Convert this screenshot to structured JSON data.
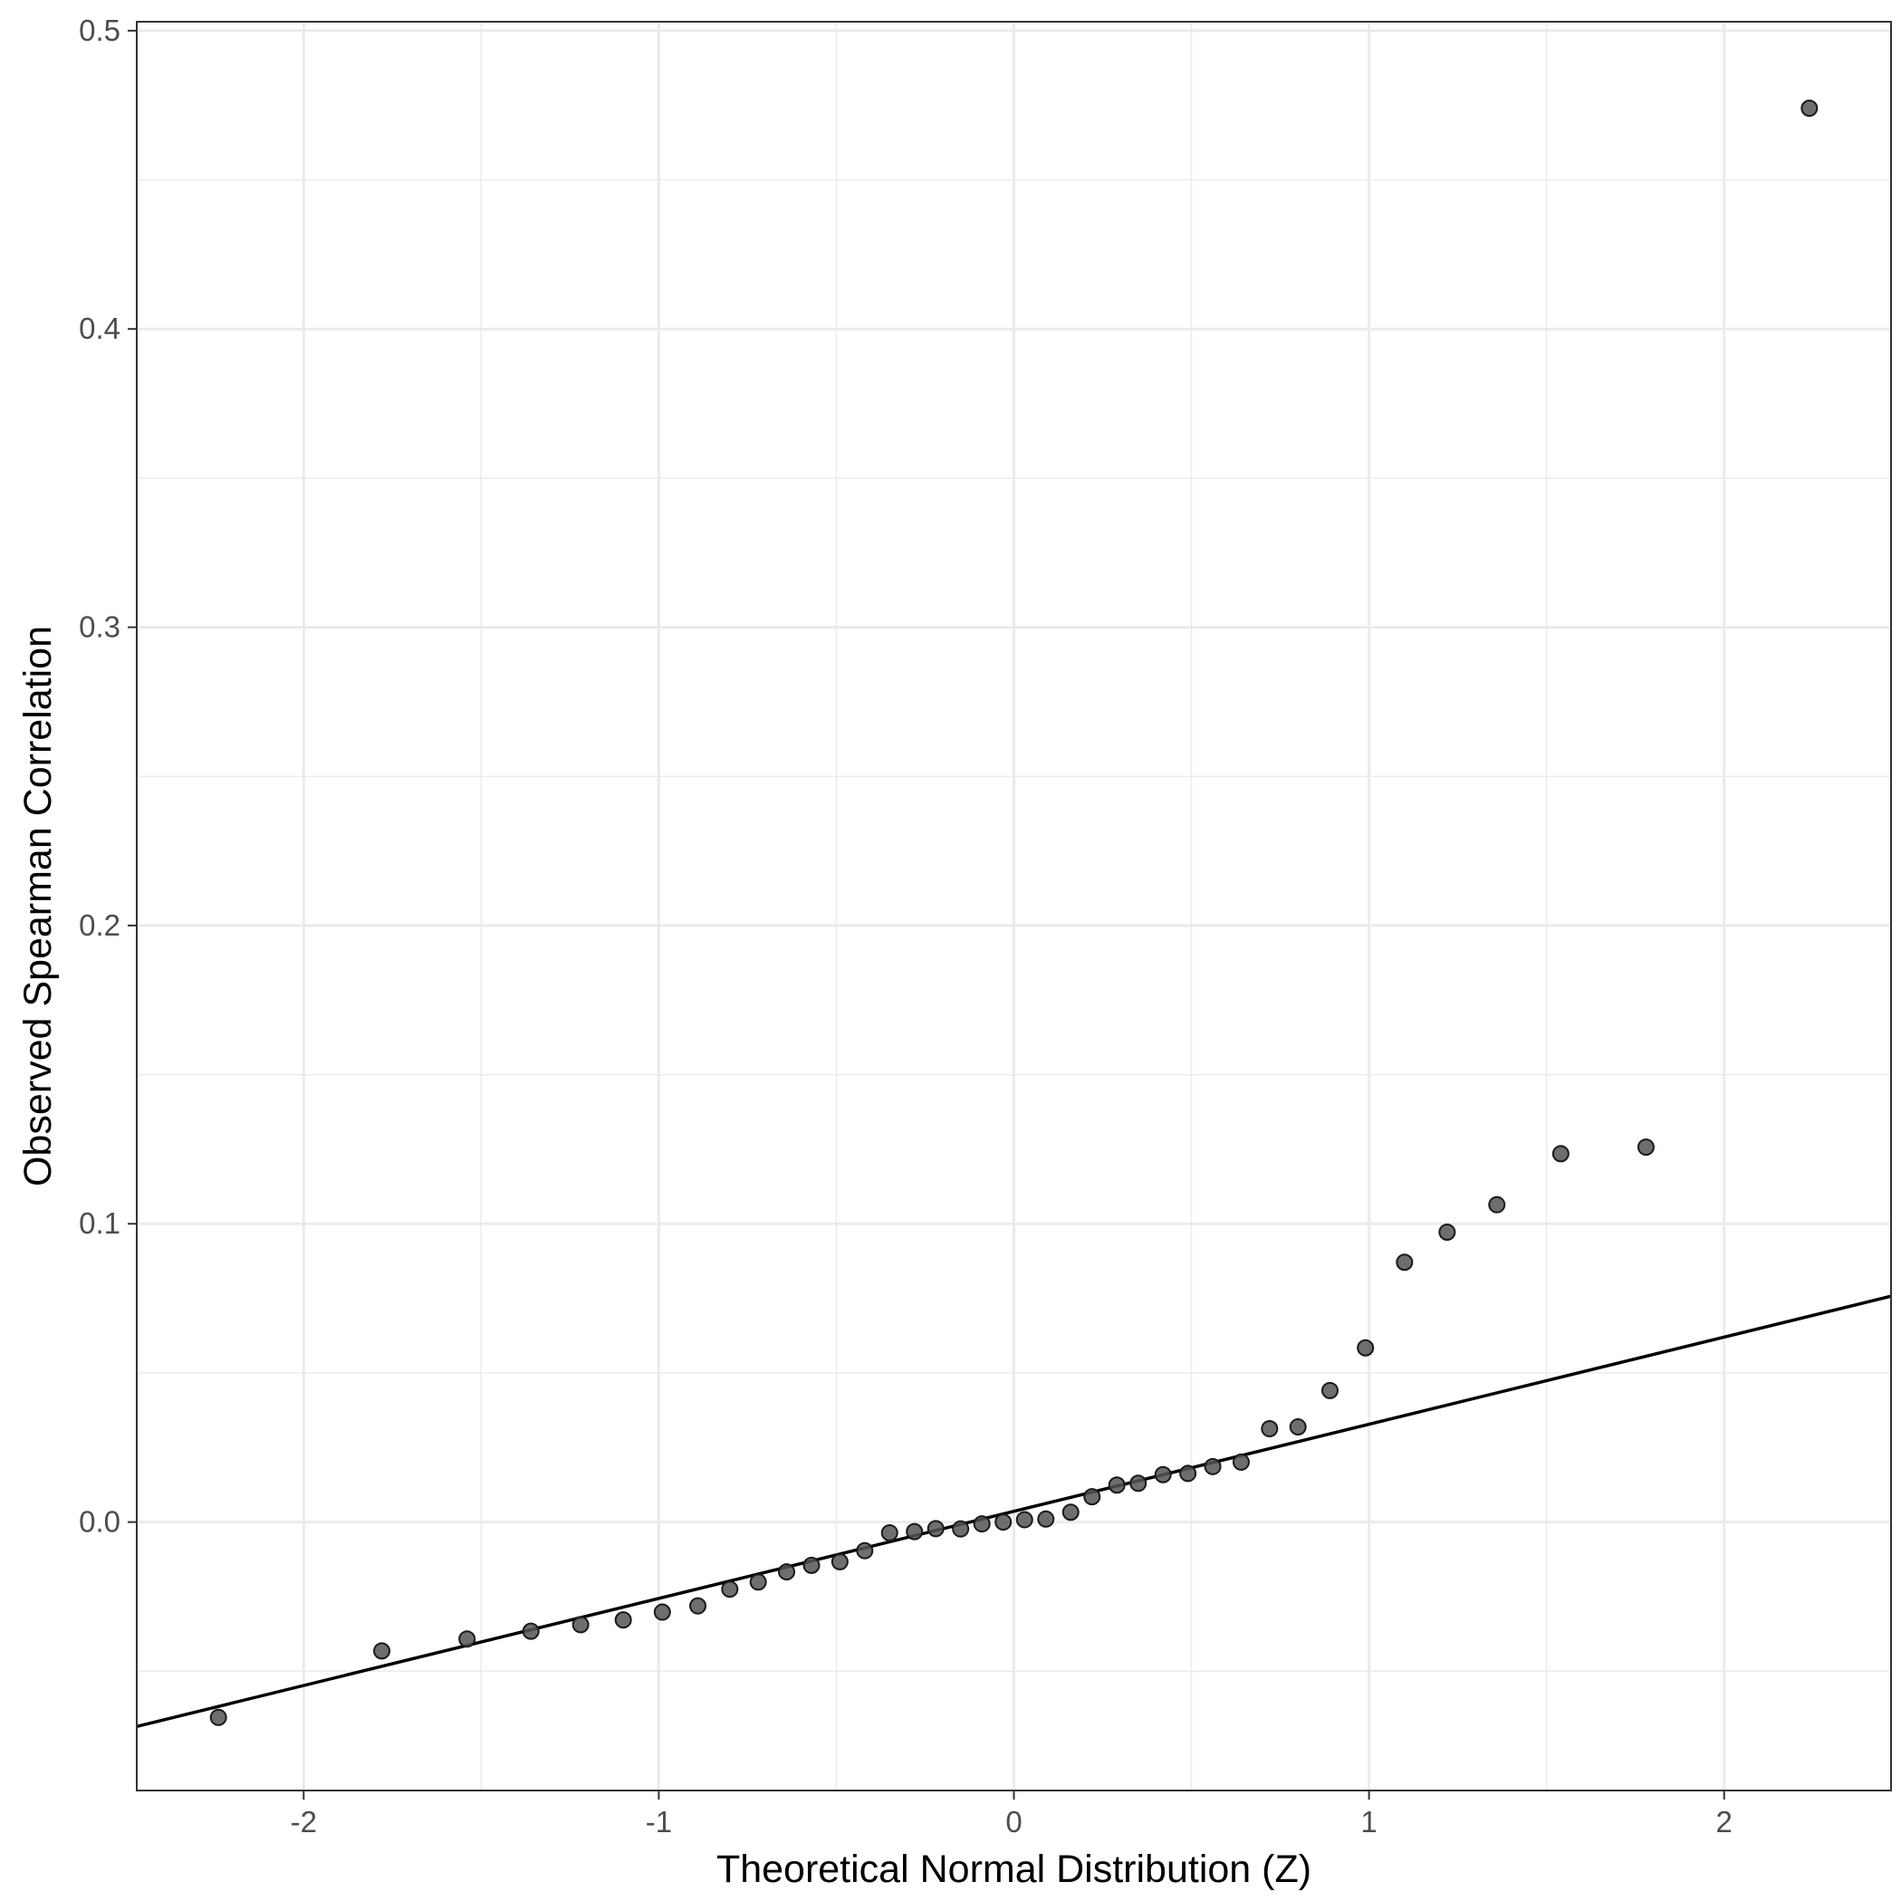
{
  "chart_data": {
    "type": "scatter",
    "title": "",
    "xlabel": "Theoretical Normal Distribution (Z)",
    "ylabel": "Observed Spearman Correlation",
    "xlim": [
      -2.47,
      2.47
    ],
    "ylim": [
      -0.09,
      0.503
    ],
    "x_ticks": [
      -2,
      -1,
      0,
      1,
      2
    ],
    "x_tick_labels": [
      "-2",
      "-1",
      "0",
      "1",
      "2"
    ],
    "y_ticks": [
      0.0,
      0.1,
      0.2,
      0.3,
      0.4,
      0.5
    ],
    "y_tick_labels": [
      "0.0",
      "0.1",
      "0.2",
      "0.3",
      "0.4",
      "0.5"
    ],
    "grid": true,
    "reference_line": {
      "intercept": 0.0036,
      "slope": 0.0292
    },
    "colors": {
      "point_fill": "#555555",
      "point_stroke": "#1a1a1a",
      "line": "#000000",
      "grid": "#ebebeb"
    },
    "points": [
      {
        "x": -2.24,
        "y": -0.0655
      },
      {
        "x": -1.78,
        "y": -0.0432
      },
      {
        "x": -1.54,
        "y": -0.0392
      },
      {
        "x": -1.36,
        "y": -0.0366
      },
      {
        "x": -1.22,
        "y": -0.0344
      },
      {
        "x": -1.1,
        "y": -0.0328
      },
      {
        "x": -0.99,
        "y": -0.0302
      },
      {
        "x": -0.89,
        "y": -0.0281
      },
      {
        "x": -0.8,
        "y": -0.0225
      },
      {
        "x": -0.72,
        "y": -0.0201
      },
      {
        "x": -0.64,
        "y": -0.0167
      },
      {
        "x": -0.57,
        "y": -0.0145
      },
      {
        "x": -0.49,
        "y": -0.0133
      },
      {
        "x": -0.42,
        "y": -0.0096
      },
      {
        "x": -0.35,
        "y": -0.0036
      },
      {
        "x": -0.28,
        "y": -0.0032
      },
      {
        "x": -0.22,
        "y": -0.0022
      },
      {
        "x": -0.15,
        "y": -0.0023
      },
      {
        "x": -0.09,
        "y": -0.0006
      },
      {
        "x": -0.03,
        "y": 0.0
      },
      {
        "x": 0.03,
        "y": 0.0008
      },
      {
        "x": 0.09,
        "y": 0.001
      },
      {
        "x": 0.16,
        "y": 0.0033
      },
      {
        "x": 0.22,
        "y": 0.0085
      },
      {
        "x": 0.29,
        "y": 0.0124
      },
      {
        "x": 0.35,
        "y": 0.013
      },
      {
        "x": 0.42,
        "y": 0.0159
      },
      {
        "x": 0.49,
        "y": 0.0163
      },
      {
        "x": 0.56,
        "y": 0.0186
      },
      {
        "x": 0.64,
        "y": 0.0201
      },
      {
        "x": 0.72,
        "y": 0.0313
      },
      {
        "x": 0.8,
        "y": 0.0319
      },
      {
        "x": 0.89,
        "y": 0.0441
      },
      {
        "x": 0.99,
        "y": 0.0584
      },
      {
        "x": 1.1,
        "y": 0.0871
      },
      {
        "x": 1.22,
        "y": 0.0972
      },
      {
        "x": 1.36,
        "y": 0.1064
      },
      {
        "x": 1.54,
        "y": 0.1235
      },
      {
        "x": 1.78,
        "y": 0.1257
      },
      {
        "x": 2.24,
        "y": 0.474
      }
    ]
  }
}
